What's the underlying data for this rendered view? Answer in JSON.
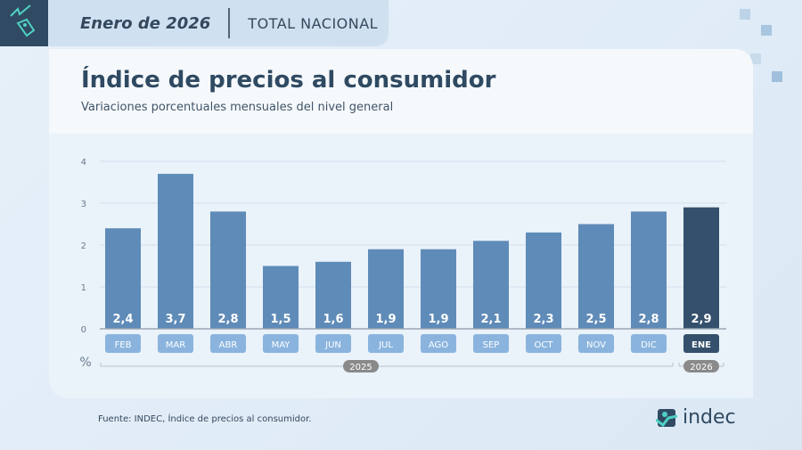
{
  "header": {
    "period": "Enero de 2026",
    "scope": "TOTAL NACIONAL"
  },
  "title": "Índice de precios al consumidor",
  "subtitle": "Variaciones porcentuales mensuales del nivel general",
  "source": "Fuente: INDEC, Índice de precios al consumidor.",
  "brand": "indec",
  "chart_data": {
    "type": "bar",
    "categories": [
      "FEB",
      "MAR",
      "ABR",
      "MAY",
      "JUN",
      "JUL",
      "AGO",
      "SEP",
      "OCT",
      "NOV",
      "DIC",
      "ENE"
    ],
    "values": [
      2.4,
      3.7,
      2.8,
      1.5,
      1.6,
      1.9,
      1.9,
      2.1,
      2.3,
      2.5,
      2.8,
      2.9
    ],
    "data_labels": [
      "2,4",
      "3,7",
      "2,8",
      "1,5",
      "1,6",
      "1,9",
      "1,9",
      "2,1",
      "2,3",
      "2,5",
      "2,8",
      "2,9"
    ],
    "ylabel": "%",
    "yticks": [
      "0",
      "1",
      "2",
      "3",
      "4"
    ],
    "ylim": [
      0,
      4
    ],
    "grid": true,
    "year_groups": [
      {
        "label": "2025",
        "count": 11
      },
      {
        "label": "2026",
        "count": 1
      }
    ],
    "colors": {
      "bar": "#5f8bb8",
      "highlight": "#34506c",
      "label_bg": "#8ab4de",
      "highlight_label_bg": "#34506c",
      "year_badge": "#8a8a8a"
    }
  }
}
